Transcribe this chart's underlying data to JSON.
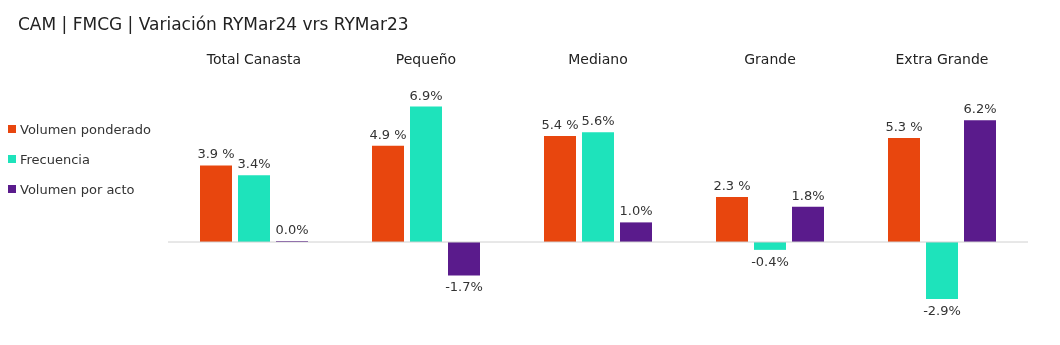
{
  "chart_data": {
    "type": "bar",
    "title": "CAM | FMCG | Variación RYMar24 vrs RYMar23",
    "categories": [
      "Total Canasta",
      "Pequeño",
      "Mediano",
      "Grande",
      "Extra Grande"
    ],
    "series": [
      {
        "name": "Volumen ponderado",
        "color": "#e8460e",
        "values": [
          3.9,
          4.9,
          5.4,
          2.3,
          5.3
        ],
        "value_labels": [
          "3.9 %",
          "4.9 %",
          "5.4 %",
          "2.3 %",
          "5.3 %"
        ]
      },
      {
        "name": "Frecuencia",
        "color": "#1ee3bb",
        "values": [
          3.4,
          6.9,
          5.6,
          -0.4,
          -2.9
        ],
        "value_labels": [
          "3.4%",
          "6.9%",
          "5.6%",
          "-0.4%",
          "-2.9%"
        ]
      },
      {
        "name": "Volumen por acto",
        "color": "#5a1b8c",
        "values": [
          0.0,
          -1.7,
          1.0,
          1.8,
          6.2
        ],
        "value_labels": [
          "0.0%",
          "-1.7%",
          "1.0%",
          "1.8%",
          "6.2%"
        ]
      }
    ],
    "legend": "left"
  }
}
